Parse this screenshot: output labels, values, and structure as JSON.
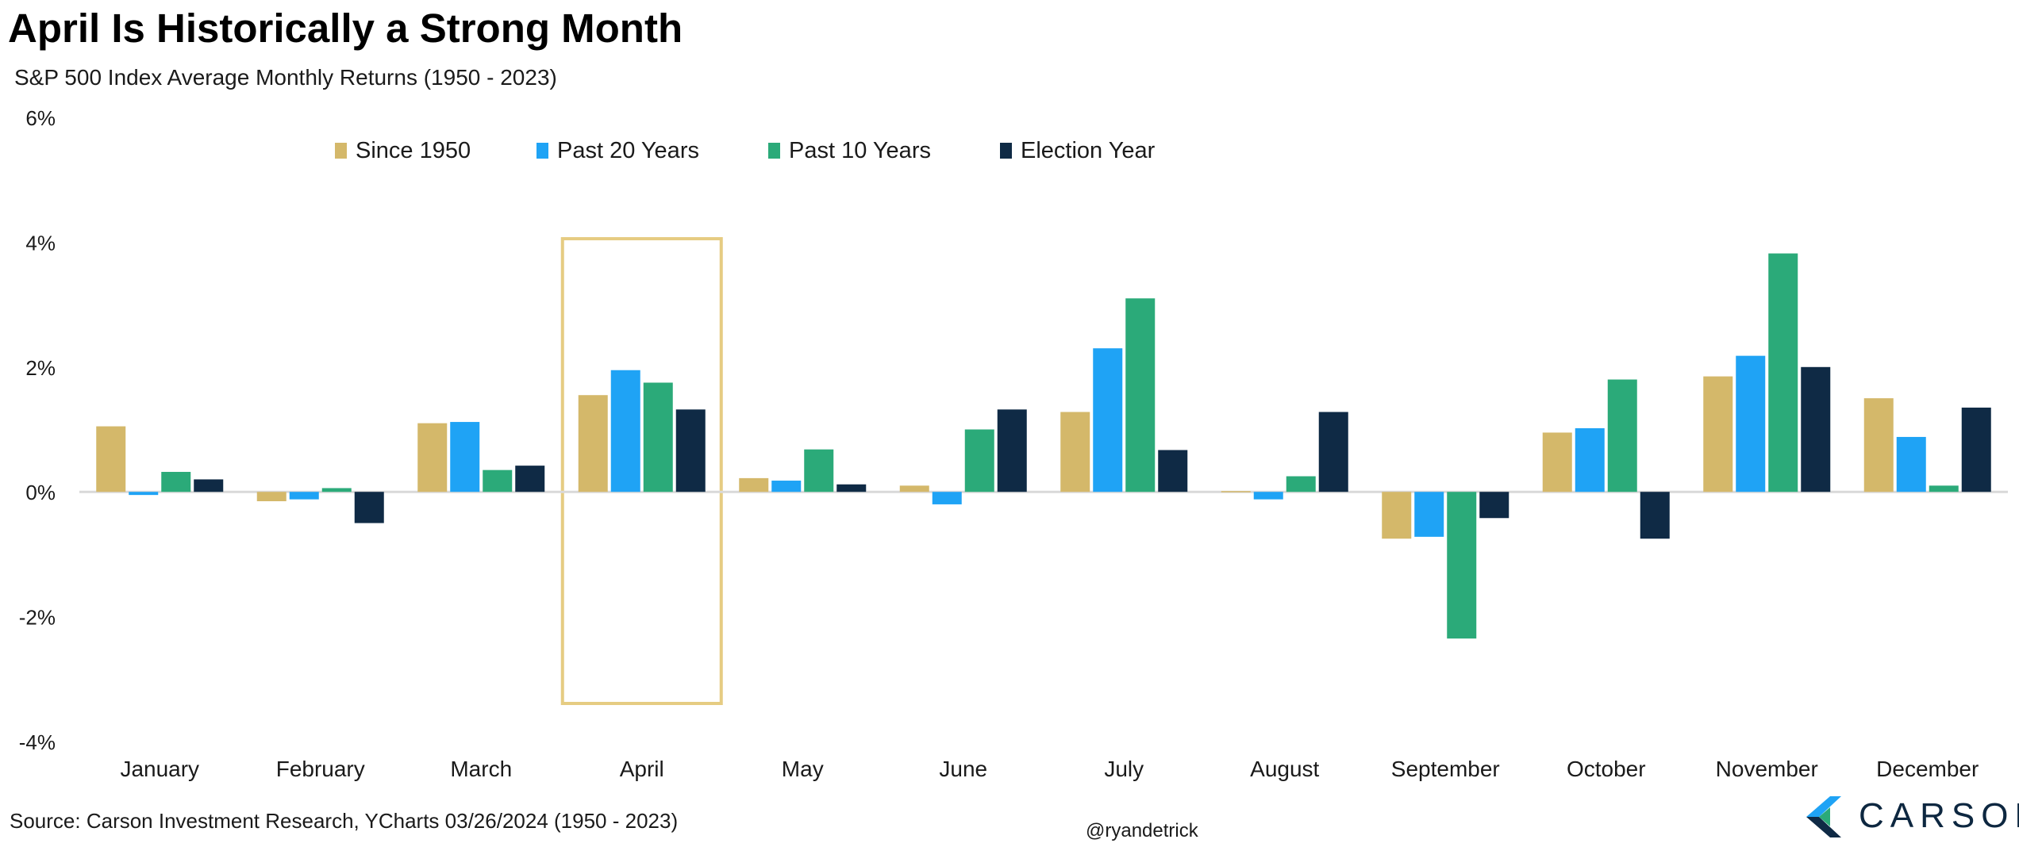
{
  "title": "April Is Historically a Strong Month",
  "subtitle": "S&P 500 Index Average Monthly Returns (1950 - 2023)",
  "source": "Source: Carson Investment Research, YCharts 03/26/2024 (1950 - 2023)",
  "handle": "@ryandetrick",
  "brand": {
    "name": "CARSON",
    "logo_icon": "carson-chevron-logo"
  },
  "colors": {
    "since_1950": "#d4b86a",
    "past_20": "#1fa3f5",
    "past_10": "#2baa79",
    "election": "#0f2a45",
    "highlight": "#e6cc82",
    "zero_line": "#d9d9d9",
    "text": "#1a1a1a"
  },
  "chart_data": {
    "type": "bar",
    "title": "April Is Historically a Strong Month",
    "subtitle": "S&P 500 Index Average Monthly Returns (1950 - 2023)",
    "xlabel": "",
    "ylabel": "",
    "ylim": [
      -4,
      6
    ],
    "yticks": [
      "-4%",
      "-2%",
      "0%",
      "2%",
      "4%",
      "6%"
    ],
    "ytick_values": [
      -4,
      -2,
      0,
      2,
      4,
      6
    ],
    "grid": false,
    "legend_position": "top",
    "highlighted_category": "April",
    "categories": [
      "January",
      "February",
      "March",
      "April",
      "May",
      "June",
      "July",
      "August",
      "September",
      "October",
      "November",
      "December"
    ],
    "series": [
      {
        "name": "Since 1950",
        "color": "#d4b86a",
        "values": [
          1.05,
          -0.15,
          1.1,
          1.55,
          0.22,
          0.1,
          1.28,
          0.0,
          -0.75,
          0.95,
          1.85,
          1.5
        ]
      },
      {
        "name": "Past 20 Years",
        "color": "#1fa3f5",
        "values": [
          -0.05,
          -0.12,
          1.12,
          1.95,
          0.18,
          -0.2,
          2.3,
          -0.12,
          -0.72,
          1.02,
          2.18,
          0.88
        ]
      },
      {
        "name": "Past 10 Years",
        "color": "#2baa79",
        "values": [
          0.32,
          0.06,
          0.35,
          1.75,
          0.68,
          1.0,
          3.1,
          0.25,
          -2.35,
          1.8,
          3.82,
          0.1
        ]
      },
      {
        "name": "Election Year",
        "color": "#0f2a45",
        "values": [
          0.2,
          -0.5,
          0.42,
          1.32,
          0.12,
          1.32,
          0.67,
          1.28,
          -0.42,
          -0.75,
          2.0,
          1.35
        ]
      }
    ]
  }
}
